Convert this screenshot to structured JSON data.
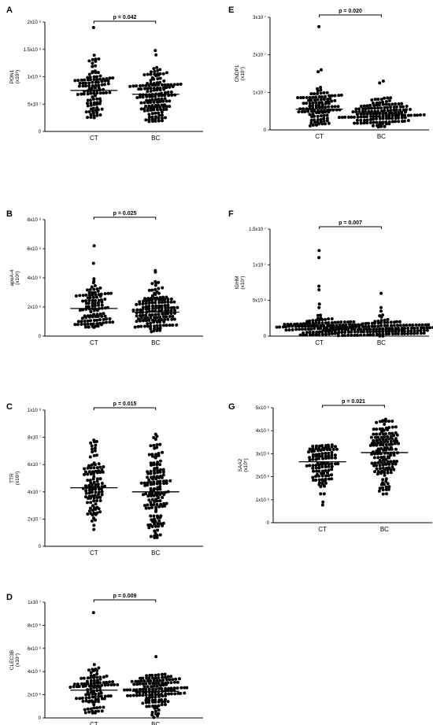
{
  "chart_data": [
    {
      "panel": "A",
      "type": "scatter",
      "ylabel": "PON1",
      "yunit": "(x10⁸)",
      "categories": [
        "CT",
        "BC"
      ],
      "ylim": [
        0,
        200000000
      ],
      "yticks": [
        0,
        50000000,
        100000000,
        150000000,
        200000000
      ],
      "yticklabels": [
        "0",
        "5x10 ⁷",
        "1x10 ⁸",
        "1.5x10 ⁸",
        "2x10 ⁸"
      ],
      "p_value": "p = 0.042",
      "means": [
        75000000,
        68000000
      ],
      "series": [
        {
          "category": "CT",
          "n": 110,
          "min": 25000000,
          "max": 140000000,
          "outliers": [
            190000000
          ]
        },
        {
          "category": "BC",
          "n": 150,
          "min": 18000000,
          "max": 120000000,
          "outliers": [
            140000000,
            148000000
          ]
        }
      ]
    },
    {
      "panel": "B",
      "type": "scatter",
      "ylabel": "apoA-4",
      "yunit": "(x10⁸)",
      "categories": [
        "CT",
        "BC"
      ],
      "ylim": [
        0,
        800000000
      ],
      "yticks": [
        0,
        200000000,
        400000000,
        600000000,
        800000000
      ],
      "yticklabels": [
        "0",
        "2x10 ⁸",
        "4x10 ⁸",
        "6x10 ⁸",
        "8x10 ⁸"
      ],
      "p_value": "p = 0.025",
      "means": [
        190000000,
        165000000
      ],
      "series": [
        {
          "category": "CT",
          "n": 110,
          "min": 60000000,
          "max": 400000000,
          "outliers": [
            500000000,
            620000000
          ]
        },
        {
          "category": "BC",
          "n": 150,
          "min": 30000000,
          "max": 380000000,
          "outliers": [
            440000000,
            450000000
          ]
        }
      ]
    },
    {
      "panel": "C",
      "type": "scatter",
      "ylabel": "TTR",
      "yunit": "(x10⁸)",
      "categories": [
        "CT",
        "BC"
      ],
      "ylim": [
        0,
        100000000
      ],
      "yticks": [
        0,
        20000000,
        40000000,
        60000000,
        80000000,
        100000000
      ],
      "yticklabels": [
        "0",
        "2x10 ⁷",
        "4x10 ⁷",
        "6x10 ⁷",
        "8x10 ⁷",
        "1x10 ⁸"
      ],
      "p_value": "p = 0.015",
      "means": [
        43000000,
        40000000
      ],
      "series": [
        {
          "category": "CT",
          "n": 110,
          "min": 12000000,
          "max": 80000000,
          "outliers": []
        },
        {
          "category": "BC",
          "n": 150,
          "min": 6000000,
          "max": 83000000,
          "outliers": []
        }
      ]
    },
    {
      "panel": "D",
      "type": "scatter",
      "ylabel": "CLEC3B",
      "yunit": "(x10⁷)",
      "categories": [
        "CT",
        "BC"
      ],
      "ylim": [
        0,
        10000000
      ],
      "yticks": [
        0,
        2000000,
        4000000,
        6000000,
        8000000,
        10000000
      ],
      "yticklabels": [
        "0",
        "2x10 ⁶",
        "4x10 ⁶",
        "6x10 ⁶",
        "8x10 ⁶",
        "1x10 ⁷"
      ],
      "p_value": "p = 0.009",
      "means": [
        2400000,
        2300000
      ],
      "series": [
        {
          "category": "CT",
          "n": 110,
          "min": 300000,
          "max": 4800000,
          "outliers": [
            9100000
          ]
        },
        {
          "category": "BC",
          "n": 150,
          "min": 0,
          "max": 3800000,
          "outliers": [
            5300000
          ]
        }
      ]
    },
    {
      "panel": "E",
      "type": "scatter",
      "ylabel": "CNDP1",
      "yunit": "(x10⁷)",
      "categories": [
        "CT",
        "BC"
      ],
      "ylim": [
        0,
        30000000
      ],
      "yticks": [
        0,
        10000000,
        20000000,
        30000000
      ],
      "yticklabels": [
        "0",
        "1x10 ⁷",
        "2x10 ⁷",
        "3x10 ⁷"
      ],
      "p_value": "p = 0.020",
      "means": [
        5500000,
        4200000
      ],
      "series": [
        {
          "category": "CT",
          "n": 110,
          "min": 800000,
          "max": 12000000,
          "outliers": [
            16000000,
            15500000,
            27500000
          ]
        },
        {
          "category": "BC",
          "n": 150,
          "min": 500000,
          "max": 10000000,
          "outliers": [
            12500000,
            13000000
          ]
        }
      ]
    },
    {
      "panel": "F",
      "type": "scatter",
      "ylabel": "IGHM",
      "yunit": "(x10⁷)",
      "categories": [
        "CT",
        "BC"
      ],
      "ylim": [
        0,
        15000000
      ],
      "yticks": [
        0,
        5000000,
        10000000,
        15000000
      ],
      "yticklabels": [
        "0",
        "5x10 ⁶",
        "1x10 ⁷",
        "1.5x10 ⁷"
      ],
      "p_value": "p = 0.007",
      "means": [
        1300000,
        900000
      ],
      "series": [
        {
          "category": "CT",
          "n": 110,
          "min": 0,
          "max": 3000000,
          "outliers": [
            4000000,
            4500000,
            6500000,
            7000000,
            11000000,
            12000000
          ]
        },
        {
          "category": "BC",
          "n": 150,
          "min": 0,
          "max": 3000000,
          "outliers": [
            3500000,
            4000000,
            6000000
          ]
        }
      ]
    },
    {
      "panel": "G",
      "type": "scatter",
      "ylabel": "SAA2",
      "yunit": "(x10⁵)",
      "categories": [
        "CT",
        "BC"
      ],
      "ylim": [
        0,
        5000000
      ],
      "yticks": [
        0,
        1000000,
        2000000,
        3000000,
        4000000,
        5000000
      ],
      "yticklabels": [
        "0",
        "1x10 ⁶",
        "2x10 ⁶",
        "3x10 ⁶",
        "4x10 ⁶",
        "5x10 ⁶"
      ],
      "p_value": "p = 0.021",
      "means": [
        2650000,
        3050000
      ],
      "series": [
        {
          "category": "CT",
          "n": 110,
          "min": 500000,
          "max": 3400000,
          "outliers": []
        },
        {
          "category": "BC",
          "n": 150,
          "min": 1200000,
          "max": 4500000,
          "outliers": []
        }
      ]
    }
  ]
}
